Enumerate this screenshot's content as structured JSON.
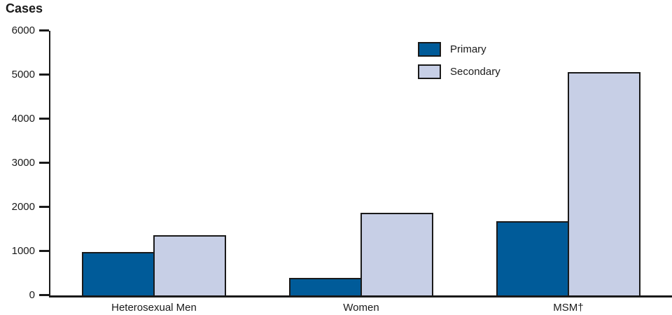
{
  "chart_data": {
    "type": "bar",
    "title": "Cases",
    "categories": [
      "Heterosexual Men",
      "Women",
      "MSM†"
    ],
    "series": [
      {
        "name": "Primary",
        "color": "#005b99",
        "values": [
          980,
          390,
          1680
        ]
      },
      {
        "name": "Secondary",
        "color": "#c7cfe6",
        "values": [
          1370,
          1880,
          5070
        ]
      }
    ],
    "xlabel": "",
    "ylabel": "Cases",
    "ylim": [
      0,
      6000
    ],
    "yticks": [
      0,
      1000,
      2000,
      3000,
      4000,
      5000,
      6000
    ],
    "legend_position": "top-right",
    "grid": false,
    "bar_border_color": "#1a1a1a"
  }
}
